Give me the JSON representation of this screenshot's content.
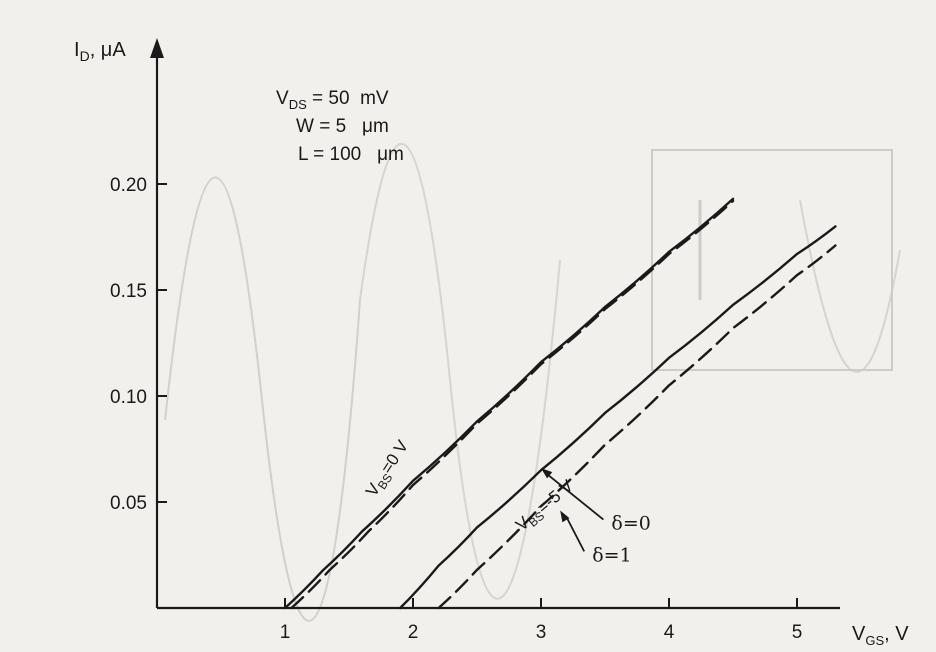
{
  "chart_data": {
    "type": "line",
    "title": "",
    "xlabel": {
      "main": "V",
      "sub": "GS",
      "unit": ", V"
    },
    "ylabel": {
      "main": "I",
      "sub": "D",
      "unit": ", μA"
    },
    "xlim": [
      0,
      5.7
    ],
    "ylim": [
      0,
      0.24
    ],
    "x_ticks": [
      1,
      2,
      3,
      4,
      5
    ],
    "y_ticks": [
      0.05,
      0.1,
      0.15,
      0.2
    ],
    "y_tick_labels": [
      "0.05",
      "0.10",
      "0.15",
      "0.20"
    ],
    "grid": false,
    "parameters": [
      {
        "main": "V",
        "sub": "DS",
        "value": " = 50  mV"
      },
      {
        "main": "W",
        "sub": "",
        "value": " = 5   μm"
      },
      {
        "main": "L",
        "sub": "",
        "value": " = 100   μm"
      }
    ],
    "series": [
      {
        "group": "VBS=0",
        "style": "solid",
        "x": [
          1.0,
          1.3,
          1.6,
          2.0,
          2.5,
          3.0,
          3.5,
          4.0,
          4.5
        ],
        "y": [
          0.0,
          0.018,
          0.036,
          0.06,
          0.088,
          0.116,
          0.142,
          0.168,
          0.193
        ]
      },
      {
        "group": "VBS=0",
        "style": "dashed",
        "x": [
          1.05,
          1.35,
          1.65,
          2.0,
          2.5,
          3.0,
          3.5,
          4.0,
          4.5
        ],
        "y": [
          0.0,
          0.018,
          0.036,
          0.058,
          0.087,
          0.115,
          0.141,
          0.167,
          0.192
        ]
      },
      {
        "group": "VBS=-5",
        "style": "solid",
        "x": [
          1.9,
          2.2,
          2.5,
          3.0,
          3.5,
          4.0,
          4.5,
          5.0,
          5.3
        ],
        "y": [
          0.0,
          0.02,
          0.038,
          0.065,
          0.092,
          0.118,
          0.143,
          0.167,
          0.18
        ]
      },
      {
        "group": "VBS=-5",
        "style": "dashed",
        "x": [
          2.2,
          2.5,
          3.0,
          3.5,
          4.0,
          4.5,
          5.0,
          5.3
        ],
        "y": [
          0.0,
          0.018,
          0.048,
          0.077,
          0.105,
          0.132,
          0.157,
          0.171
        ]
      }
    ],
    "annotations": [
      {
        "text": "=0 V",
        "prefix": "V",
        "sub": "BS",
        "x": 1.7,
        "y": 0.052,
        "angle": -57
      },
      {
        "text": "=-5 V",
        "prefix": "V",
        "sub": "BS",
        "x": 2.85,
        "y": 0.036,
        "angle": -40
      },
      {
        "text": "δ=0",
        "x": 3.55,
        "y": 0.037,
        "arrow_to": [
          3.0,
          0.066
        ]
      },
      {
        "text": "δ=1",
        "x": 3.4,
        "y": 0.022,
        "arrow_to": [
          3.15,
          0.046
        ]
      }
    ],
    "colors": {
      "ink": "#1a1a1a",
      "paper": "#f1f0ec"
    }
  }
}
